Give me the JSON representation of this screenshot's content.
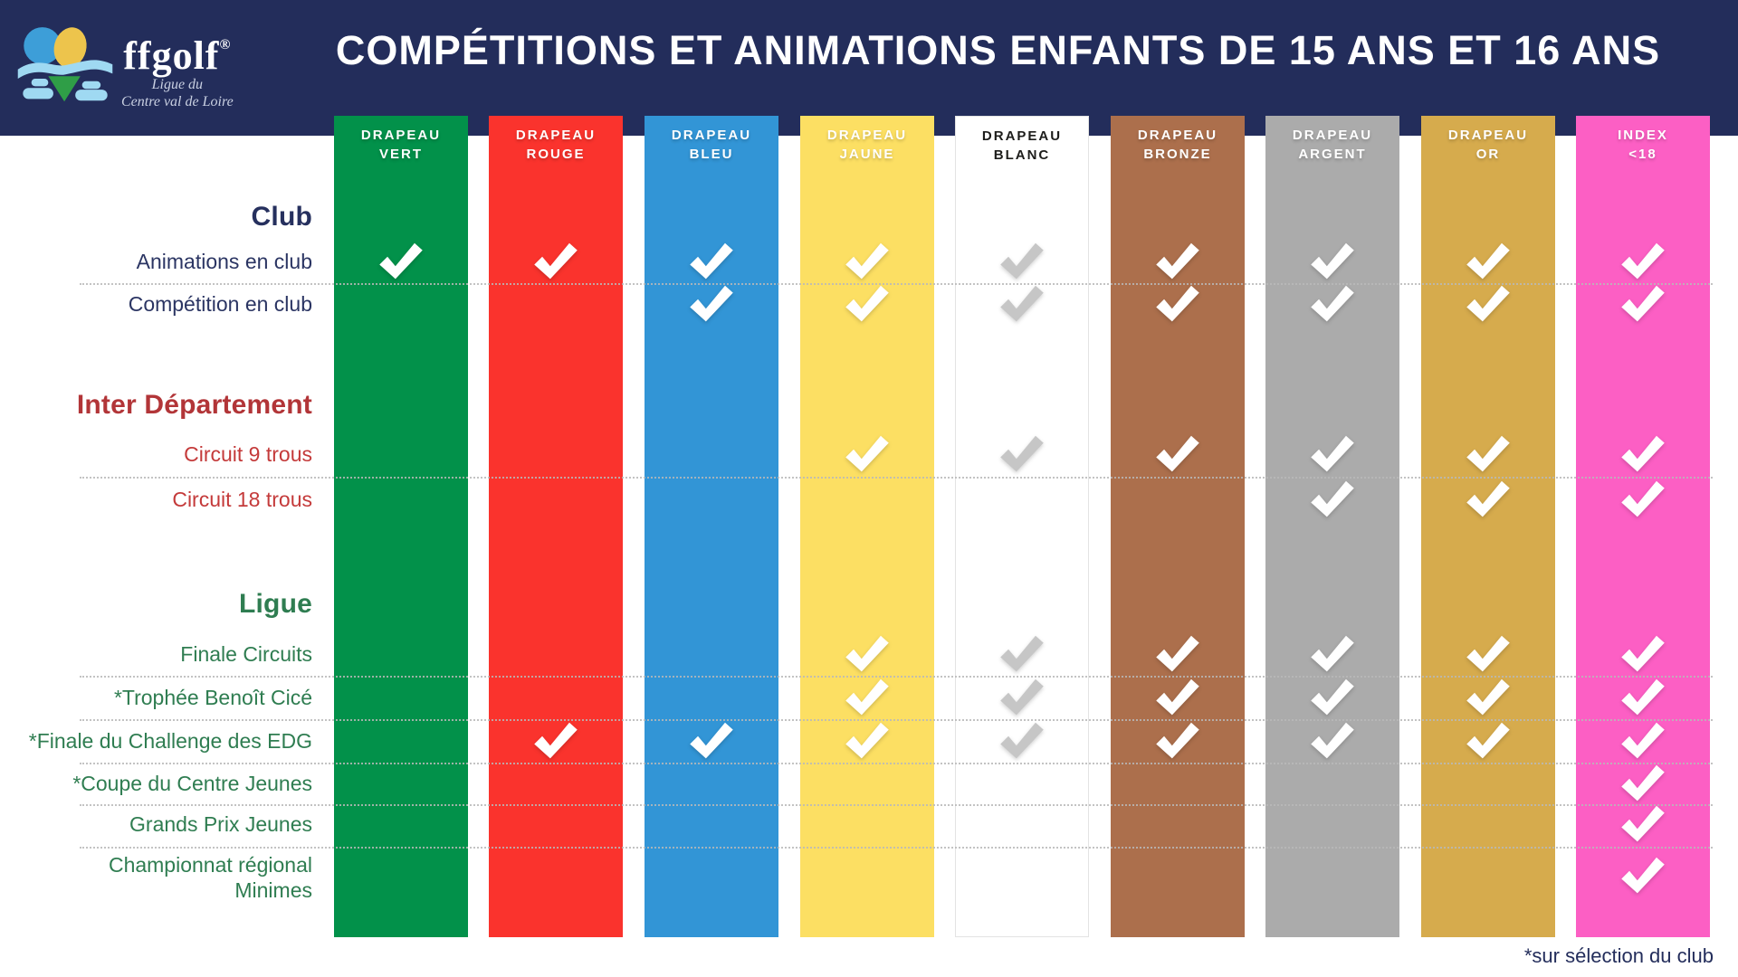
{
  "header": {
    "title": "COMPÉTITIONS ET ANIMATIONS ENFANTS DE 15 ANS ET 16 ANS",
    "logo": {
      "brand": "ffgolf",
      "registered": "®",
      "subtitle_line1": "Ligue du",
      "subtitle_line2": "Centre val de Loire"
    }
  },
  "colors": {
    "banner_navy": "#232d5b",
    "club_text": "#2b3563",
    "interdep_heading": "#b23538",
    "interdep_rows": "#c43a3a",
    "ligue_text": "#2f7d51",
    "gray_check": "#c6c6c6",
    "white_check": "#ffffff",
    "dotted_line": "#b9b9b9"
  },
  "columns": [
    {
      "id": "drapeau-vert",
      "line1": "DRAPEAU",
      "line2": "VERT",
      "color": "#02914a",
      "text_color": "#ffffff",
      "check_color": "#ffffff"
    },
    {
      "id": "drapeau-rouge",
      "line1": "DRAPEAU",
      "line2": "ROUGE",
      "color": "#fa332d",
      "text_color": "#ffffff",
      "check_color": "#ffffff"
    },
    {
      "id": "drapeau-bleu",
      "line1": "DRAPEAU",
      "line2": "BLEU",
      "color": "#3295d6",
      "text_color": "#ffffff",
      "check_color": "#ffffff"
    },
    {
      "id": "drapeau-jaune",
      "line1": "DRAPEAU",
      "line2": "JAUNE",
      "color": "#fcdf63",
      "text_color": "#ffffff",
      "check_color": "#ffffff"
    },
    {
      "id": "drapeau-blanc",
      "line1": "DRAPEAU",
      "line2": "BLANC",
      "color": "#ffffff",
      "text_color": "#1d1d1b",
      "check_color": "#c6c6c6",
      "border": "#e3e3e3"
    },
    {
      "id": "drapeau-bronze",
      "line1": "DRAPEAU",
      "line2": "BRONZE",
      "color": "#ac6f4c",
      "text_color": "#ffffff",
      "check_color": "#ffffff"
    },
    {
      "id": "drapeau-argent",
      "line1": "DRAPEAU",
      "line2": "ARGENT",
      "color": "#ababab",
      "text_color": "#ffffff",
      "check_color": "#ffffff"
    },
    {
      "id": "drapeau-or",
      "line1": "DRAPEAU",
      "line2": "OR",
      "color": "#d6ab4d",
      "text_color": "#ffffff",
      "check_color": "#ffffff"
    },
    {
      "id": "index-moins-18",
      "line1": "INDEX",
      "line2": "<18",
      "color": "#fc5fc4",
      "text_color": "#ffffff",
      "check_color": "#ffffff"
    }
  ],
  "sections": [
    {
      "name": "Club",
      "heading_color": "#26305e",
      "row_color": "#2b3563",
      "rows": [
        {
          "id": "animations-en-club",
          "label": "Animations en club",
          "checks": [
            1,
            1,
            1,
            1,
            1,
            1,
            1,
            1,
            1
          ]
        },
        {
          "id": "competition-en-club",
          "label": "Compétition en club",
          "checks": [
            0,
            0,
            1,
            1,
            1,
            1,
            1,
            1,
            1
          ]
        }
      ]
    },
    {
      "name": "Inter Département",
      "heading_color": "#b23538",
      "row_color": "#c43a3a",
      "rows": [
        {
          "id": "circuit-9-trous",
          "label": "Circuit 9 trous",
          "checks": [
            0,
            0,
            0,
            1,
            1,
            1,
            1,
            1,
            1
          ]
        },
        {
          "id": "circuit-18-trous",
          "label": "Circuit 18 trous",
          "checks": [
            0,
            0,
            0,
            0,
            0,
            0,
            1,
            1,
            1
          ]
        }
      ]
    },
    {
      "name": "Ligue",
      "heading_color": "#2f7d51",
      "row_color": "#2f7d51",
      "rows": [
        {
          "id": "finale-circuits",
          "label": "Finale Circuits",
          "checks": [
            0,
            0,
            0,
            1,
            1,
            1,
            1,
            1,
            1
          ]
        },
        {
          "id": "trophee-benoit-cice",
          "label": "*Trophée Benoît Cicé",
          "checks": [
            0,
            0,
            0,
            1,
            1,
            1,
            1,
            1,
            1
          ]
        },
        {
          "id": "finale-challenge-edg",
          "label": "*Finale du Challenge des EDG",
          "checks": [
            0,
            1,
            1,
            1,
            1,
            1,
            1,
            1,
            1
          ]
        },
        {
          "id": "coupe-centre-jeunes",
          "label": "*Coupe du Centre Jeunes",
          "checks": [
            0,
            0,
            0,
            0,
            0,
            0,
            0,
            0,
            1
          ]
        },
        {
          "id": "grands-prix-jeunes",
          "label": "Grands Prix Jeunes",
          "checks": [
            0,
            0,
            0,
            0,
            0,
            0,
            0,
            0,
            1
          ]
        },
        {
          "id": "championnat-regional-minimes",
          "label": "Championnat régional Minimes",
          "label_line1": "Championnat régional",
          "label_line2": "Minimes",
          "checks": [
            0,
            0,
            0,
            0,
            0,
            0,
            0,
            0,
            1
          ]
        }
      ]
    }
  ],
  "footer": {
    "note": "*sur sélection du club"
  },
  "chart_data": {
    "type": "table",
    "title": "COMPÉTITIONS ET ANIMATIONS ENFANTS DE 15 ANS ET 16 ANS",
    "columns": [
      "DRAPEAU VERT",
      "DRAPEAU ROUGE",
      "DRAPEAU BLEU",
      "DRAPEAU JAUNE",
      "DRAPEAU BLANC",
      "DRAPEAU BRONZE",
      "DRAPEAU ARGENT",
      "DRAPEAU OR",
      "INDEX <18"
    ],
    "row_groups": [
      "Club",
      "Club",
      "Inter Département",
      "Inter Département",
      "Ligue",
      "Ligue",
      "Ligue",
      "Ligue",
      "Ligue",
      "Ligue"
    ],
    "rows": [
      "Animations en club",
      "Compétition en club",
      "Circuit 9 trous",
      "Circuit 18 trous",
      "Finale Circuits",
      "*Trophée Benoît Cicé",
      "*Finale du Challenge des EDG",
      "*Coupe du Centre Jeunes",
      "Grands Prix Jeunes",
      "Championnat régional Minimes"
    ],
    "values": [
      [
        1,
        1,
        1,
        1,
        1,
        1,
        1,
        1,
        1
      ],
      [
        0,
        0,
        1,
        1,
        1,
        1,
        1,
        1,
        1
      ],
      [
        0,
        0,
        0,
        1,
        1,
        1,
        1,
        1,
        1
      ],
      [
        0,
        0,
        0,
        0,
        0,
        0,
        1,
        1,
        1
      ],
      [
        0,
        0,
        0,
        1,
        1,
        1,
        1,
        1,
        1
      ],
      [
        0,
        0,
        0,
        1,
        1,
        1,
        1,
        1,
        1
      ],
      [
        0,
        1,
        1,
        1,
        1,
        1,
        1,
        1,
        1
      ],
      [
        0,
        0,
        0,
        0,
        0,
        0,
        0,
        0,
        1
      ],
      [
        0,
        0,
        0,
        0,
        0,
        0,
        0,
        0,
        1
      ],
      [
        0,
        0,
        0,
        0,
        0,
        0,
        0,
        0,
        1
      ]
    ],
    "footnote": "*sur sélection du club"
  }
}
